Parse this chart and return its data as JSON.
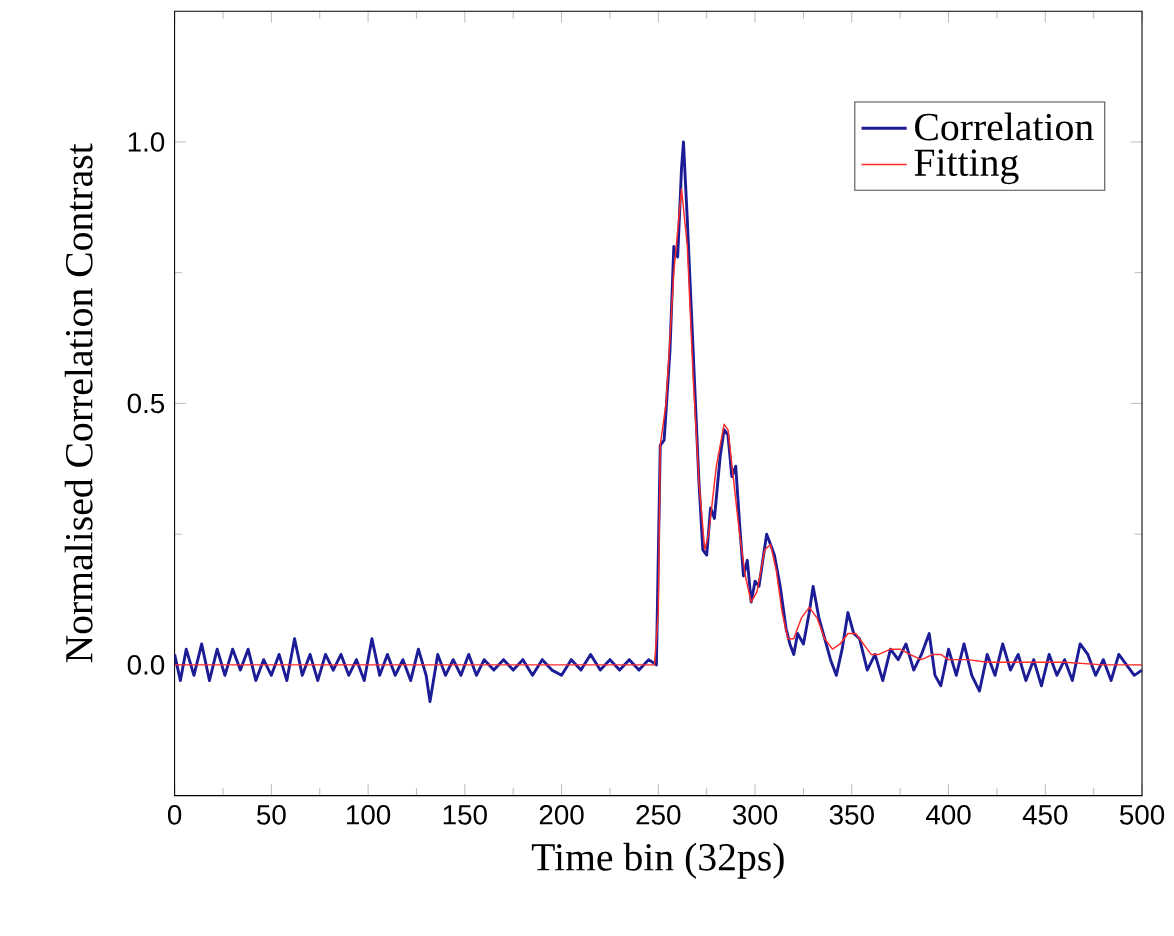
{
  "chart_data": {
    "type": "line",
    "xlabel": "Time bin (32ps)",
    "ylabel": "Normalised Correlation Contrast",
    "xlim": [
      0,
      500
    ],
    "ylim": [
      -0.25,
      1.25
    ],
    "xticks": [
      0,
      50,
      100,
      150,
      200,
      250,
      300,
      350,
      400,
      450,
      500
    ],
    "yticks": [
      {
        "value": 0,
        "label": "0.0"
      },
      {
        "value": 0.5,
        "label": "0.5"
      },
      {
        "value": 1,
        "label": "1.0"
      }
    ],
    "legend": "top right",
    "marker": "none",
    "line_style": "solid",
    "series": [
      {
        "name": "Correlation",
        "color": "#1c1c96",
        "x": [
          0,
          3,
          6,
          10,
          14,
          18,
          22,
          26,
          30,
          34,
          38,
          42,
          46,
          50,
          54,
          58,
          62,
          66,
          70,
          74,
          78,
          82,
          86,
          90,
          94,
          98,
          102,
          106,
          110,
          114,
          118,
          122,
          126,
          130,
          132,
          136,
          140,
          144,
          148,
          152,
          156,
          160,
          165,
          170,
          175,
          180,
          185,
          190,
          195,
          200,
          205,
          210,
          215,
          220,
          225,
          230,
          235,
          240,
          245,
          249,
          251,
          253,
          256,
          258,
          260,
          262,
          263,
          265,
          268,
          271,
          273,
          275,
          277,
          279,
          282,
          284,
          286,
          288,
          290,
          292,
          294,
          296,
          298,
          300,
          302,
          304,
          306,
          308,
          310,
          313,
          316,
          318,
          320,
          322,
          325,
          328,
          330,
          333,
          336,
          339,
          342,
          345,
          348,
          351,
          354,
          358,
          362,
          366,
          370,
          374,
          378,
          382,
          386,
          390,
          393,
          396,
          400,
          404,
          408,
          412,
          416,
          420,
          424,
          428,
          432,
          436,
          440,
          444,
          448,
          452,
          456,
          460,
          464,
          468,
          472,
          476,
          480,
          484,
          488,
          492,
          496,
          500
        ],
        "values": [
          0.02,
          -0.03,
          0.03,
          -0.02,
          0.04,
          -0.03,
          0.03,
          -0.02,
          0.03,
          -0.01,
          0.03,
          -0.03,
          0.01,
          -0.02,
          0.02,
          -0.03,
          0.05,
          -0.02,
          0.02,
          -0.03,
          0.02,
          -0.01,
          0.02,
          -0.02,
          0.01,
          -0.03,
          0.05,
          -0.02,
          0.02,
          -0.02,
          0.01,
          -0.03,
          0.03,
          -0.02,
          -0.07,
          0.02,
          -0.02,
          0.01,
          -0.02,
          0.02,
          -0.02,
          0.01,
          -0.01,
          0.01,
          -0.01,
          0.01,
          -0.02,
          0.01,
          -0.01,
          -0.02,
          0.01,
          -0.01,
          0.02,
          -0.01,
          0.01,
          -0.01,
          0.01,
          -0.01,
          0.01,
          0.0,
          0.42,
          0.43,
          0.6,
          0.8,
          0.78,
          0.95,
          1.0,
          0.85,
          0.6,
          0.35,
          0.22,
          0.21,
          0.3,
          0.28,
          0.4,
          0.45,
          0.44,
          0.36,
          0.38,
          0.27,
          0.17,
          0.2,
          0.12,
          0.16,
          0.15,
          0.2,
          0.25,
          0.23,
          0.21,
          0.15,
          0.07,
          0.04,
          0.02,
          0.06,
          0.04,
          0.1,
          0.15,
          0.09,
          0.05,
          0.01,
          -0.02,
          0.03,
          0.1,
          0.06,
          0.05,
          -0.01,
          0.02,
          -0.03,
          0.03,
          0.01,
          0.04,
          -0.01,
          0.02,
          0.06,
          -0.02,
          -0.04,
          0.03,
          -0.02,
          0.04,
          -0.02,
          -0.05,
          0.02,
          -0.02,
          0.04,
          -0.01,
          0.02,
          -0.03,
          0.01,
          -0.04,
          0.02,
          -0.02,
          0.01,
          -0.03,
          0.04,
          0.02,
          -0.02,
          0.01,
          -0.03,
          0.02,
          0.0,
          -0.02,
          -0.01
        ]
      },
      {
        "name": "Fitting",
        "color": "#ff2a2a",
        "x": [
          0,
          248,
          250,
          251,
          254,
          258,
          262,
          265,
          268,
          271,
          274,
          276,
          280,
          284,
          286,
          289,
          292,
          295,
          298,
          301,
          305,
          308,
          311,
          314,
          317,
          320,
          324,
          328,
          332,
          336,
          340,
          344,
          348,
          352,
          356,
          360,
          364,
          370,
          375,
          380,
          386,
          392,
          396,
          400,
          410,
          420,
          440,
          460,
          480,
          500
        ],
        "values": [
          0,
          0,
          0.1,
          0.42,
          0.5,
          0.75,
          0.91,
          0.8,
          0.55,
          0.35,
          0.22,
          0.25,
          0.38,
          0.46,
          0.45,
          0.35,
          0.25,
          0.17,
          0.12,
          0.14,
          0.22,
          0.23,
          0.18,
          0.1,
          0.05,
          0.05,
          0.09,
          0.11,
          0.09,
          0.05,
          0.03,
          0.04,
          0.06,
          0.06,
          0.04,
          0.02,
          0.02,
          0.03,
          0.03,
          0.02,
          0.01,
          0.02,
          0.02,
          0.01,
          0.01,
          0.005,
          0.005,
          0.005,
          0,
          0
        ]
      }
    ]
  }
}
